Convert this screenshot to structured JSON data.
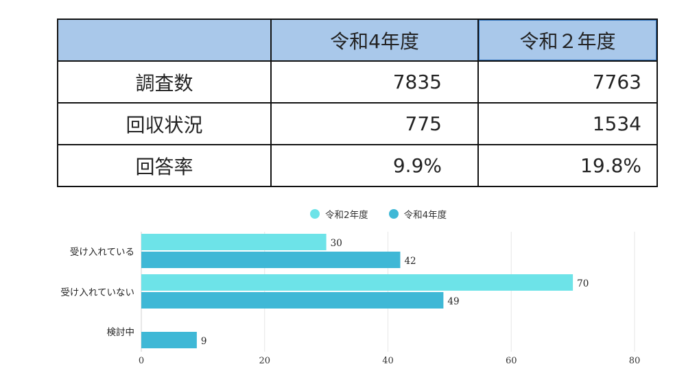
{
  "table": {
    "header": [
      "",
      "令和4年度",
      "令和２年度"
    ],
    "rows": [
      {
        "label": "調査数",
        "r4": "7835",
        "r2": "7763"
      },
      {
        "label": "回収状況",
        "r4": "775",
        "r2": "1534"
      },
      {
        "label": "回答率",
        "r4": "9.9%",
        "r2": "19.8%"
      }
    ]
  },
  "colors": {
    "header_bg": "#a9c8ea",
    "series_r2": "#6de3e8",
    "series_r4": "#3fb8d6"
  },
  "chart_data": {
    "type": "bar",
    "orientation": "horizontal",
    "categories": [
      "受け入れている",
      "受け入れていない",
      "検討中"
    ],
    "series": [
      {
        "name": "令和2年度",
        "values": [
          30,
          70,
          null
        ]
      },
      {
        "name": "令和4年度",
        "values": [
          42,
          49,
          9
        ]
      }
    ],
    "xlim": [
      0,
      80
    ],
    "xticks": [
      0,
      20,
      40,
      60,
      80
    ],
    "grid": true,
    "legend": "top"
  }
}
